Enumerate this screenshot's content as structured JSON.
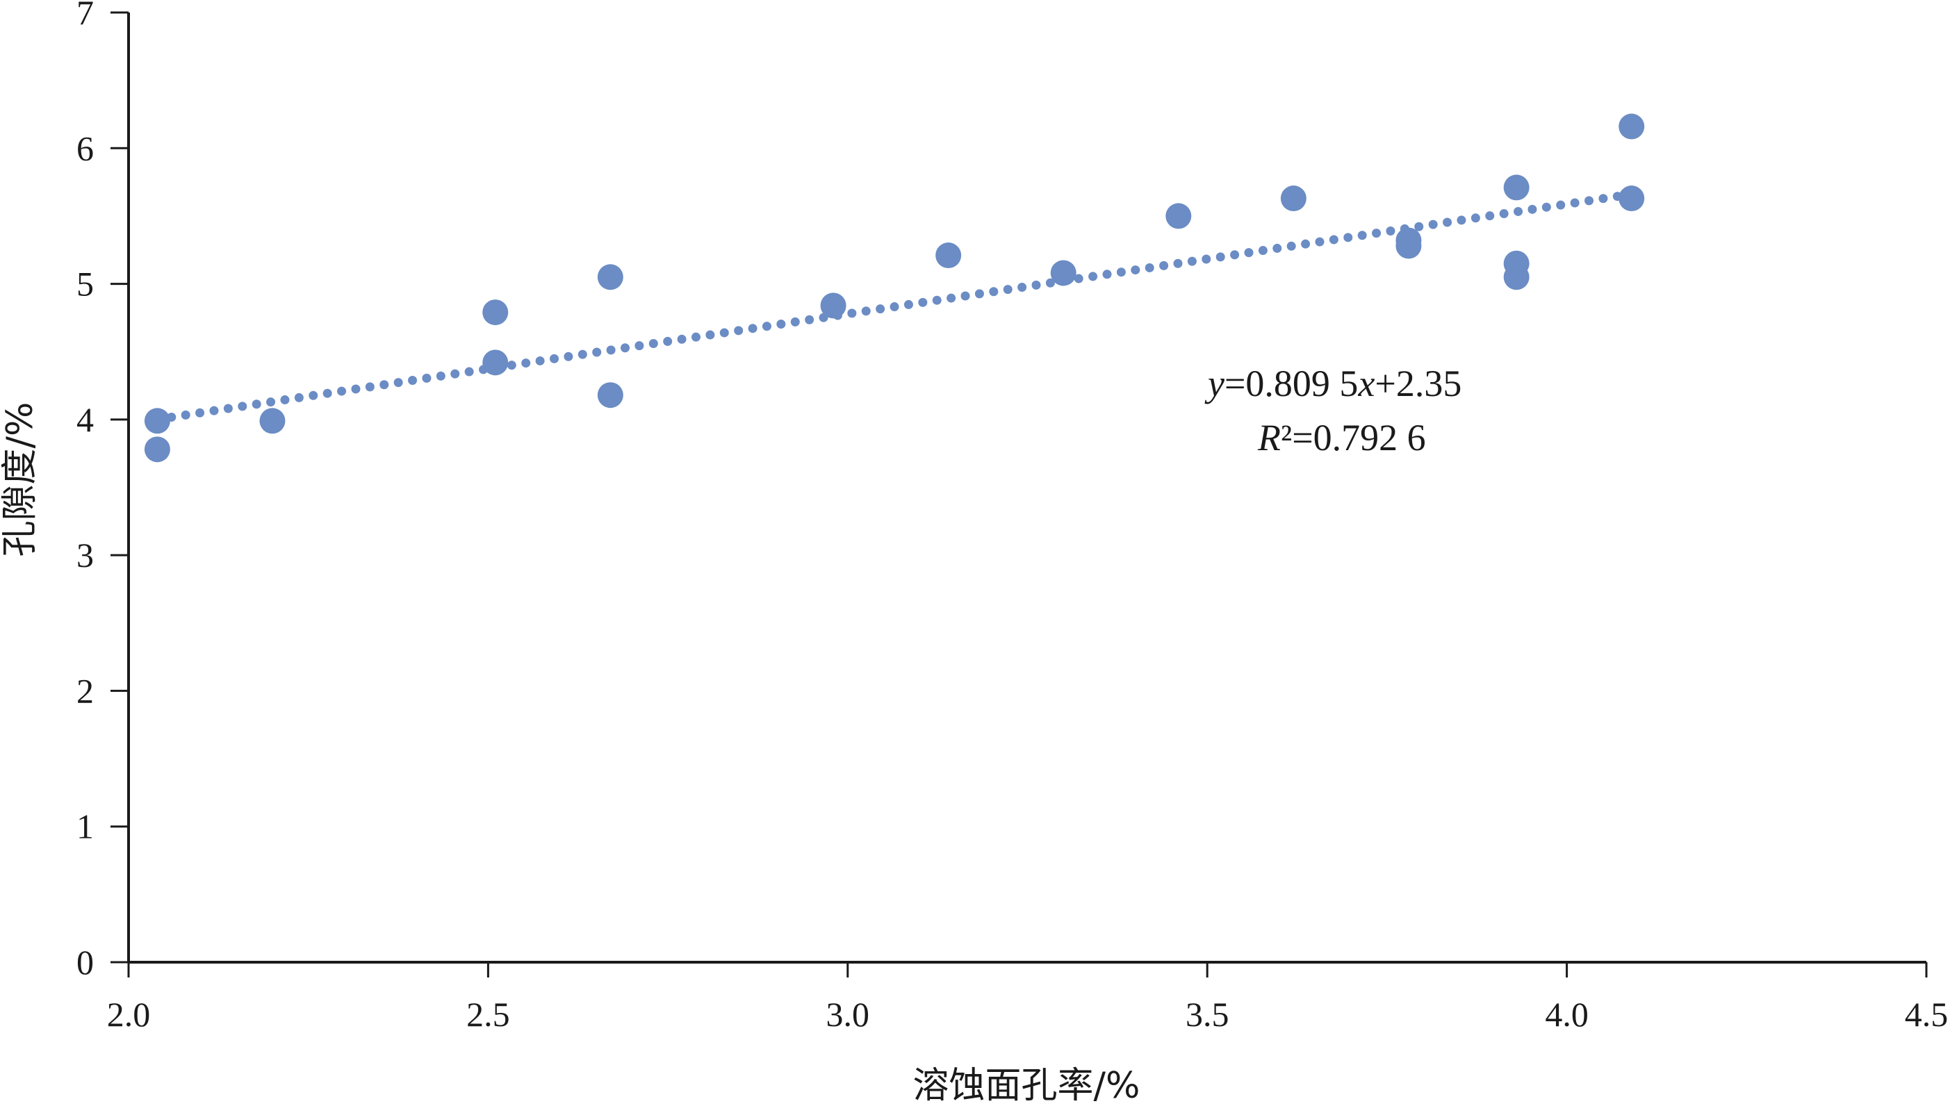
{
  "chart_data": {
    "type": "scatter",
    "xlabel": "溶蚀面孔率/%",
    "ylabel": "孔隙度/%",
    "xlim": [
      2.0,
      4.5
    ],
    "ylim": [
      0,
      7
    ],
    "xticks": [
      "2.0",
      "2.5",
      "3.0",
      "3.5",
      "4.0",
      "4.5"
    ],
    "yticks": [
      "0",
      "1",
      "2",
      "3",
      "4",
      "5",
      "6",
      "7"
    ],
    "grid": false,
    "legend": "none",
    "point_color": "#6b8cc4",
    "trend_color": "#6b8cc4",
    "series": [
      {
        "points": [
          {
            "x": 2.04,
            "y": 3.99
          },
          {
            "x": 2.04,
            "y": 3.78
          },
          {
            "x": 2.2,
            "y": 3.99
          },
          {
            "x": 2.51,
            "y": 4.79
          },
          {
            "x": 2.51,
            "y": 4.42
          },
          {
            "x": 2.67,
            "y": 5.05
          },
          {
            "x": 2.67,
            "y": 4.18
          },
          {
            "x": 2.98,
            "y": 4.84
          },
          {
            "x": 3.14,
            "y": 5.21
          },
          {
            "x": 3.3,
            "y": 5.08
          },
          {
            "x": 3.46,
            "y": 5.5
          },
          {
            "x": 3.62,
            "y": 5.63
          },
          {
            "x": 3.78,
            "y": 5.32
          },
          {
            "x": 3.78,
            "y": 5.28
          },
          {
            "x": 3.93,
            "y": 5.71
          },
          {
            "x": 3.93,
            "y": 5.15
          },
          {
            "x": 3.93,
            "y": 5.05
          },
          {
            "x": 4.09,
            "y": 6.16
          },
          {
            "x": 4.09,
            "y": 5.63
          }
        ]
      }
    ],
    "trendline": {
      "type": "linear",
      "slope": 0.8095,
      "intercept": 2.35,
      "x_range": [
        2.04,
        4.09
      ],
      "style": "dotted"
    },
    "annotations": {
      "equation": {
        "y": "y",
        "eq1": "=0.809 5",
        "x": "x",
        "rest": "+2.35"
      },
      "r2": {
        "R": "R",
        "rest": "²=0.792 6"
      }
    }
  }
}
